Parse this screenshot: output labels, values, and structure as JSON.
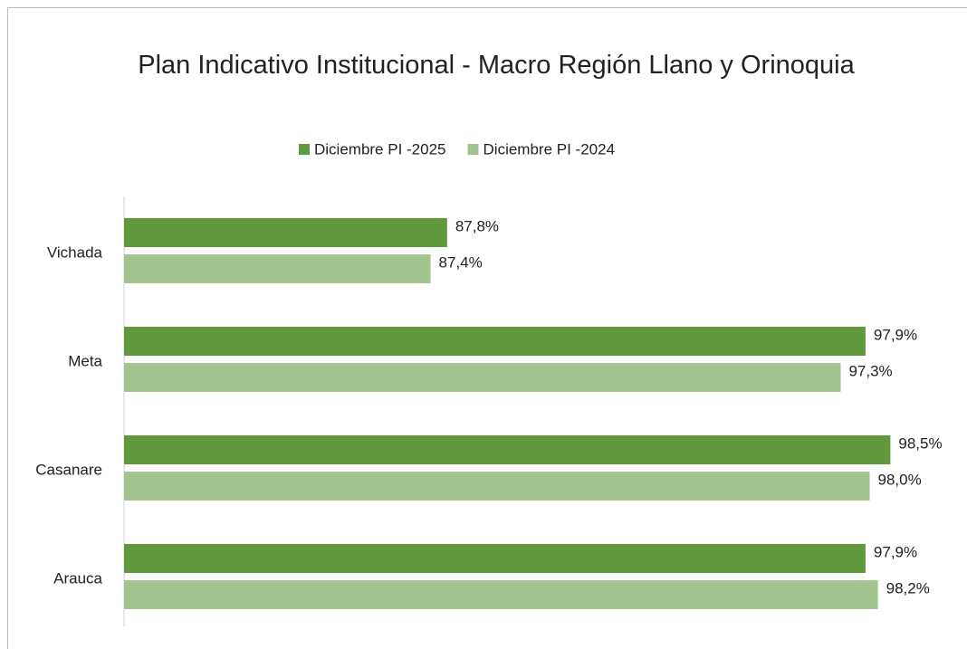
{
  "chart_data": {
    "type": "bar",
    "orientation": "horizontal",
    "title": "Plan Indicativo Institucional - Macro Región Llano y Orinoquia",
    "categories": [
      "Vichada",
      "Meta",
      "Casanare",
      "Arauca"
    ],
    "series": [
      {
        "name": "Diciembre PI -2025",
        "color": "#5f993b",
        "values": [
          87.8,
          97.9,
          98.5,
          97.9
        ],
        "value_labels": [
          "87,8%",
          "97,9%",
          "98,5%",
          "97,9%"
        ]
      },
      {
        "name": "Diciembre PI -2024",
        "color": "#a2c48f",
        "values": [
          87.4,
          97.3,
          98.0,
          98.2
        ],
        "value_labels": [
          "87,4%",
          "97,3%",
          "98,0%",
          "98,2%"
        ]
      }
    ],
    "xlim": [
      80,
      100
    ],
    "legend": "top"
  }
}
